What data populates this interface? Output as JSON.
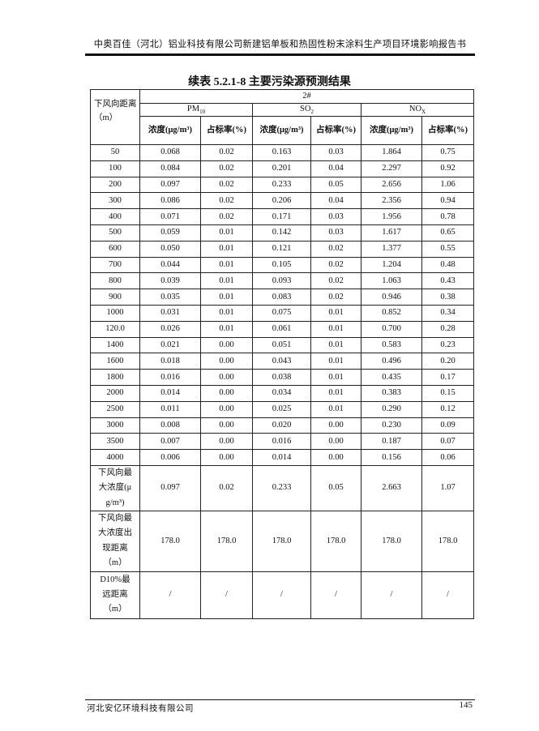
{
  "page_header": "中奥百佳（河北）铝业科技有限公司新建铝单板和热固性粉末涂料生产项目环境影响报告书",
  "table_title": "续表 5.2.1-8   主要污染源预测结果",
  "table": {
    "row_header": "下风向距离（m）",
    "source": "2#",
    "pollutants": [
      {
        "name": "PM",
        "sub": "10"
      },
      {
        "name": "SO",
        "sub": "2"
      },
      {
        "name": "NO",
        "sub": "X"
      }
    ],
    "sub_headers": [
      "浓度(μg/m³)",
      "占标率(%)",
      "浓度(μg/m³)",
      "占标率(%)",
      "浓度(μg/m³)",
      "占标率(%)"
    ],
    "rows": [
      [
        "50",
        "0.068",
        "0.02",
        "0.163",
        "0.03",
        "1.864",
        "0.75"
      ],
      [
        "100",
        "0.084",
        "0.02",
        "0.201",
        "0.04",
        "2.297",
        "0.92"
      ],
      [
        "200",
        "0.097",
        "0.02",
        "0.233",
        "0.05",
        "2.656",
        "1.06"
      ],
      [
        "300",
        "0.086",
        "0.02",
        "0.206",
        "0.04",
        "2.356",
        "0.94"
      ],
      [
        "400",
        "0.071",
        "0.02",
        "0.171",
        "0.03",
        "1.956",
        "0.78"
      ],
      [
        "500",
        "0.059",
        "0.01",
        "0.142",
        "0.03",
        "1.617",
        "0.65"
      ],
      [
        "600",
        "0.050",
        "0.01",
        "0.121",
        "0.02",
        "1.377",
        "0.55"
      ],
      [
        "700",
        "0.044",
        "0.01",
        "0.105",
        "0.02",
        "1.204",
        "0.48"
      ],
      [
        "800",
        "0.039",
        "0.01",
        "0.093",
        "0.02",
        "1.063",
        "0.43"
      ],
      [
        "900",
        "0.035",
        "0.01",
        "0.083",
        "0.02",
        "0.946",
        "0.38"
      ],
      [
        "1000",
        "0.031",
        "0.01",
        "0.075",
        "0.01",
        "0.852",
        "0.34"
      ],
      [
        "120.0",
        "0.026",
        "0.01",
        "0.061",
        "0.01",
        "0.700",
        "0.28"
      ],
      [
        "1400",
        "0.021",
        "0.00",
        "0.051",
        "0.01",
        "0.583",
        "0.23"
      ],
      [
        "1600",
        "0.018",
        "0.00",
        "0.043",
        "0.01",
        "0.496",
        "0.20"
      ],
      [
        "1800",
        "0.016",
        "0.00",
        "0.038",
        "0.01",
        "0.435",
        "0.17"
      ],
      [
        "2000",
        "0.014",
        "0.00",
        "0.034",
        "0.01",
        "0.383",
        "0.15"
      ],
      [
        "2500",
        "0.011",
        "0.00",
        "0.025",
        "0.01",
        "0.290",
        "0.12"
      ],
      [
        "3000",
        "0.008",
        "0.00",
        "0.020",
        "0.00",
        "0.230",
        "0.09"
      ],
      [
        "3500",
        "0.007",
        "0.00",
        "0.016",
        "0.00",
        "0.187",
        "0.07"
      ],
      [
        "4000",
        "0.006",
        "0.00",
        "0.014",
        "0.00",
        "0.156",
        "0.06"
      ]
    ],
    "summary_rows": [
      {
        "label": "下风向最大浓度(μg/m³)",
        "label_lines": [
          "下风向最",
          "大浓度",
          "(μg/m³)"
        ],
        "values": [
          "0.097",
          "0.02",
          "0.233",
          "0.05",
          "2.663",
          "1.07"
        ]
      },
      {
        "label": "下风向最大浓度出现距离（m）",
        "label_lines": [
          "下风向最",
          "大浓度出",
          "现距离",
          "（m）"
        ],
        "values": [
          "178.0",
          "178.0",
          "178.0",
          "178.0",
          "178.0",
          "178.0"
        ]
      },
      {
        "label": "D10%最远距离（m）",
        "label_lines": [
          "D10%最",
          "远距离",
          "（m）"
        ],
        "values": [
          "/",
          "/",
          "/",
          "/",
          "/",
          "/"
        ]
      }
    ]
  },
  "footer": {
    "company": "河北安亿环境科技有限公司",
    "page_number": "145"
  }
}
